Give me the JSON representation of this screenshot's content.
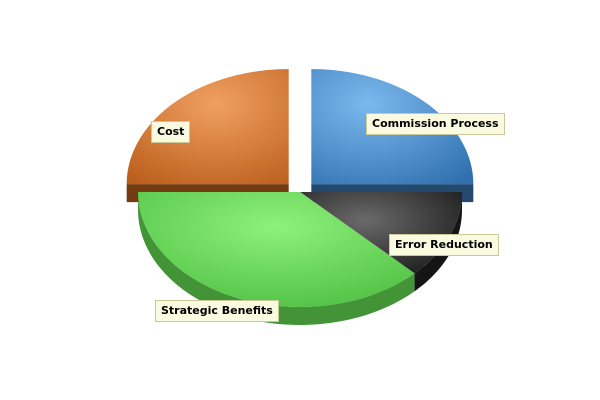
{
  "chart_data": {
    "type": "pie",
    "style": "3d-exploded",
    "slices": [
      {
        "key": "commission",
        "label": "Commission Process",
        "value": 25,
        "color": "#3f86c8",
        "exploded": true
      },
      {
        "key": "error",
        "label": "Error Reduction",
        "value": 12.5,
        "color": "#1e1e1e",
        "exploded": false
      },
      {
        "key": "strategic",
        "label": "Strategic Benefits",
        "value": 37.5,
        "color": "#5fd24f",
        "exploded": false
      },
      {
        "key": "cost",
        "label": "Cost",
        "value": 25,
        "color": "#d2691e",
        "exploded": true
      }
    ]
  }
}
